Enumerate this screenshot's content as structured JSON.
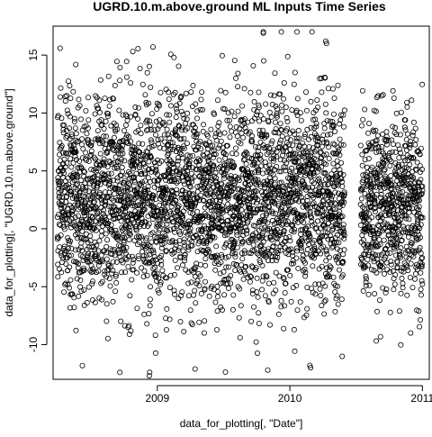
{
  "chart_data": {
    "type": "scatter",
    "title": "UGRD.10.m.above.ground ML Inputs Time Series",
    "xlabel": "data_for_plotting[, \"Date\"]",
    "ylabel": "data_for_plotting[, \"UGRD.10.m.above.ground\"]",
    "x_scale": "date",
    "xlim": [
      "2008-03-20",
      "2011-01-20"
    ],
    "ylim": [
      -13,
      17.5
    ],
    "x_ticks": [
      {
        "date": "2009-01-01",
        "label": "2009"
      },
      {
        "date": "2010-01-01",
        "label": "2010"
      },
      {
        "date": "2011-01-01",
        "label": "2011"
      }
    ],
    "y_ticks": [
      -10,
      -5,
      0,
      5,
      10,
      15
    ],
    "marker": "open-circle",
    "color": "#000000",
    "grid": false,
    "segments": [
      {
        "start": "2008-04-01",
        "end": "2010-05-31",
        "typical_range": [
          -5.5,
          10.5
        ],
        "min": -12.7,
        "max": 17.0
      },
      {
        "start": "2010-07-15",
        "end": "2011-01-01",
        "typical_range": [
          -5.0,
          9.0
        ],
        "min": -10.8,
        "max": 12.8
      }
    ],
    "gap": {
      "start": "2010-06-01",
      "end": "2010-07-14"
    },
    "notable_points": [
      {
        "x": "2009-10-20",
        "y": 17.0
      },
      {
        "x": "2009-10-20",
        "y": 16.9
      },
      {
        "x": "2008-12-20",
        "y": 15.7
      },
      {
        "x": "2010-04-10",
        "y": 16.2
      },
      {
        "x": "2010-04-12",
        "y": 16.0
      },
      {
        "x": "2008-12-10",
        "y": -12.7
      },
      {
        "x": "2008-12-11",
        "y": -12.4
      },
      {
        "x": "2008-09-20",
        "y": -12.4
      },
      {
        "x": "2010-02-25",
        "y": -11.8
      },
      {
        "x": "2010-02-27",
        "y": -12.0
      },
      {
        "x": "2009-11-01",
        "y": -12.2
      }
    ]
  }
}
